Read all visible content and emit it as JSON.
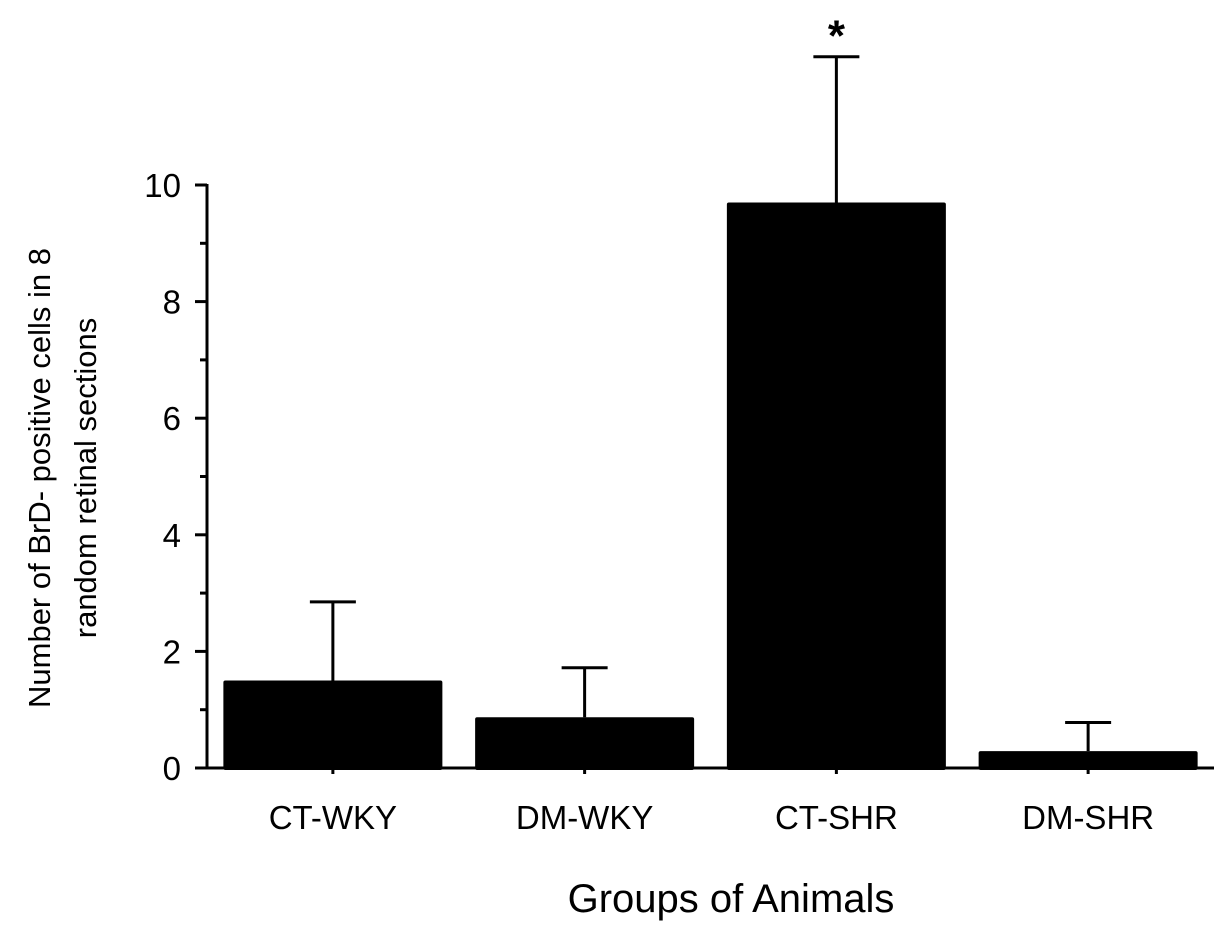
{
  "chart_data": {
    "type": "bar",
    "title": "",
    "xlabel": "Groups of Animals",
    "ylabel_lines": [
      "Number of BrD- positive cells in 8",
      "random retinal sections"
    ],
    "categories": [
      "CT-WKY",
      "DM-WKY",
      "CT-SHR",
      "DM-SHR"
    ],
    "values": [
      1.5,
      0.87,
      9.7,
      0.29
    ],
    "error_upper": [
      2.85,
      1.72,
      12.2,
      0.78
    ],
    "annotations": [
      {
        "category": "CT-SHR",
        "text": "*"
      }
    ],
    "ylim": [
      0,
      10
    ],
    "yticks": [
      "0",
      "2",
      "4",
      "6",
      "8",
      "10"
    ],
    "ytick_values": [
      0,
      2,
      4,
      6,
      8,
      10
    ],
    "yminor_ticks": [
      1,
      3,
      5,
      7,
      9
    ],
    "grid": false,
    "bar_color": "#000000"
  }
}
